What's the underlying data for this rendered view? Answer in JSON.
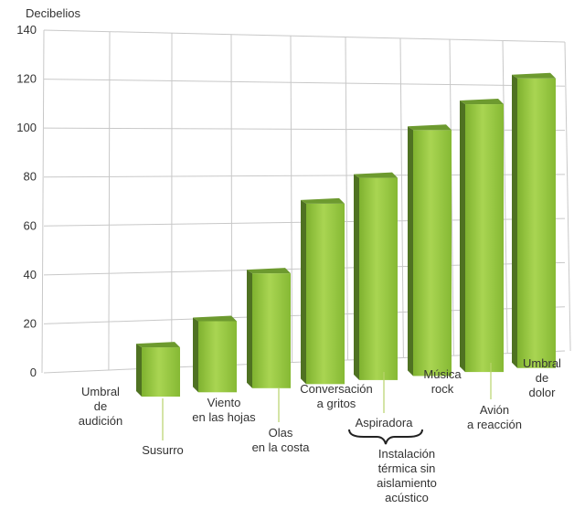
{
  "chart_data": {
    "type": "bar",
    "ylabel": "Decibelios",
    "ylim": [
      0,
      140
    ],
    "yticks": [
      0,
      20,
      40,
      60,
      80,
      100,
      120,
      140
    ],
    "grid": true,
    "categories": [
      [
        "Umbral",
        "de",
        "audición"
      ],
      [
        "Susurro"
      ],
      [
        "Viento",
        "en las hojas"
      ],
      [
        "Olas",
        "en la costa"
      ],
      [
        "Conversación",
        "a gritos"
      ],
      [
        "Aspiradora"
      ],
      [
        "Música",
        "rock"
      ],
      [
        "Avión",
        "a reacción"
      ],
      [
        "Umbral",
        "de",
        "dolor"
      ]
    ],
    "values": [
      0,
      10,
      20,
      40,
      70,
      80,
      100,
      110,
      120
    ],
    "annotation": [
      "Instalación",
      "térmica sin",
      "aislamiento",
      "acústico"
    ],
    "colors": {
      "bar_front": "#8fc23a",
      "bar_front_light": "#a9d552",
      "bar_side": "#4f7222",
      "bar_top": "#6d9a2f",
      "grid": "#c8c8c8"
    }
  }
}
